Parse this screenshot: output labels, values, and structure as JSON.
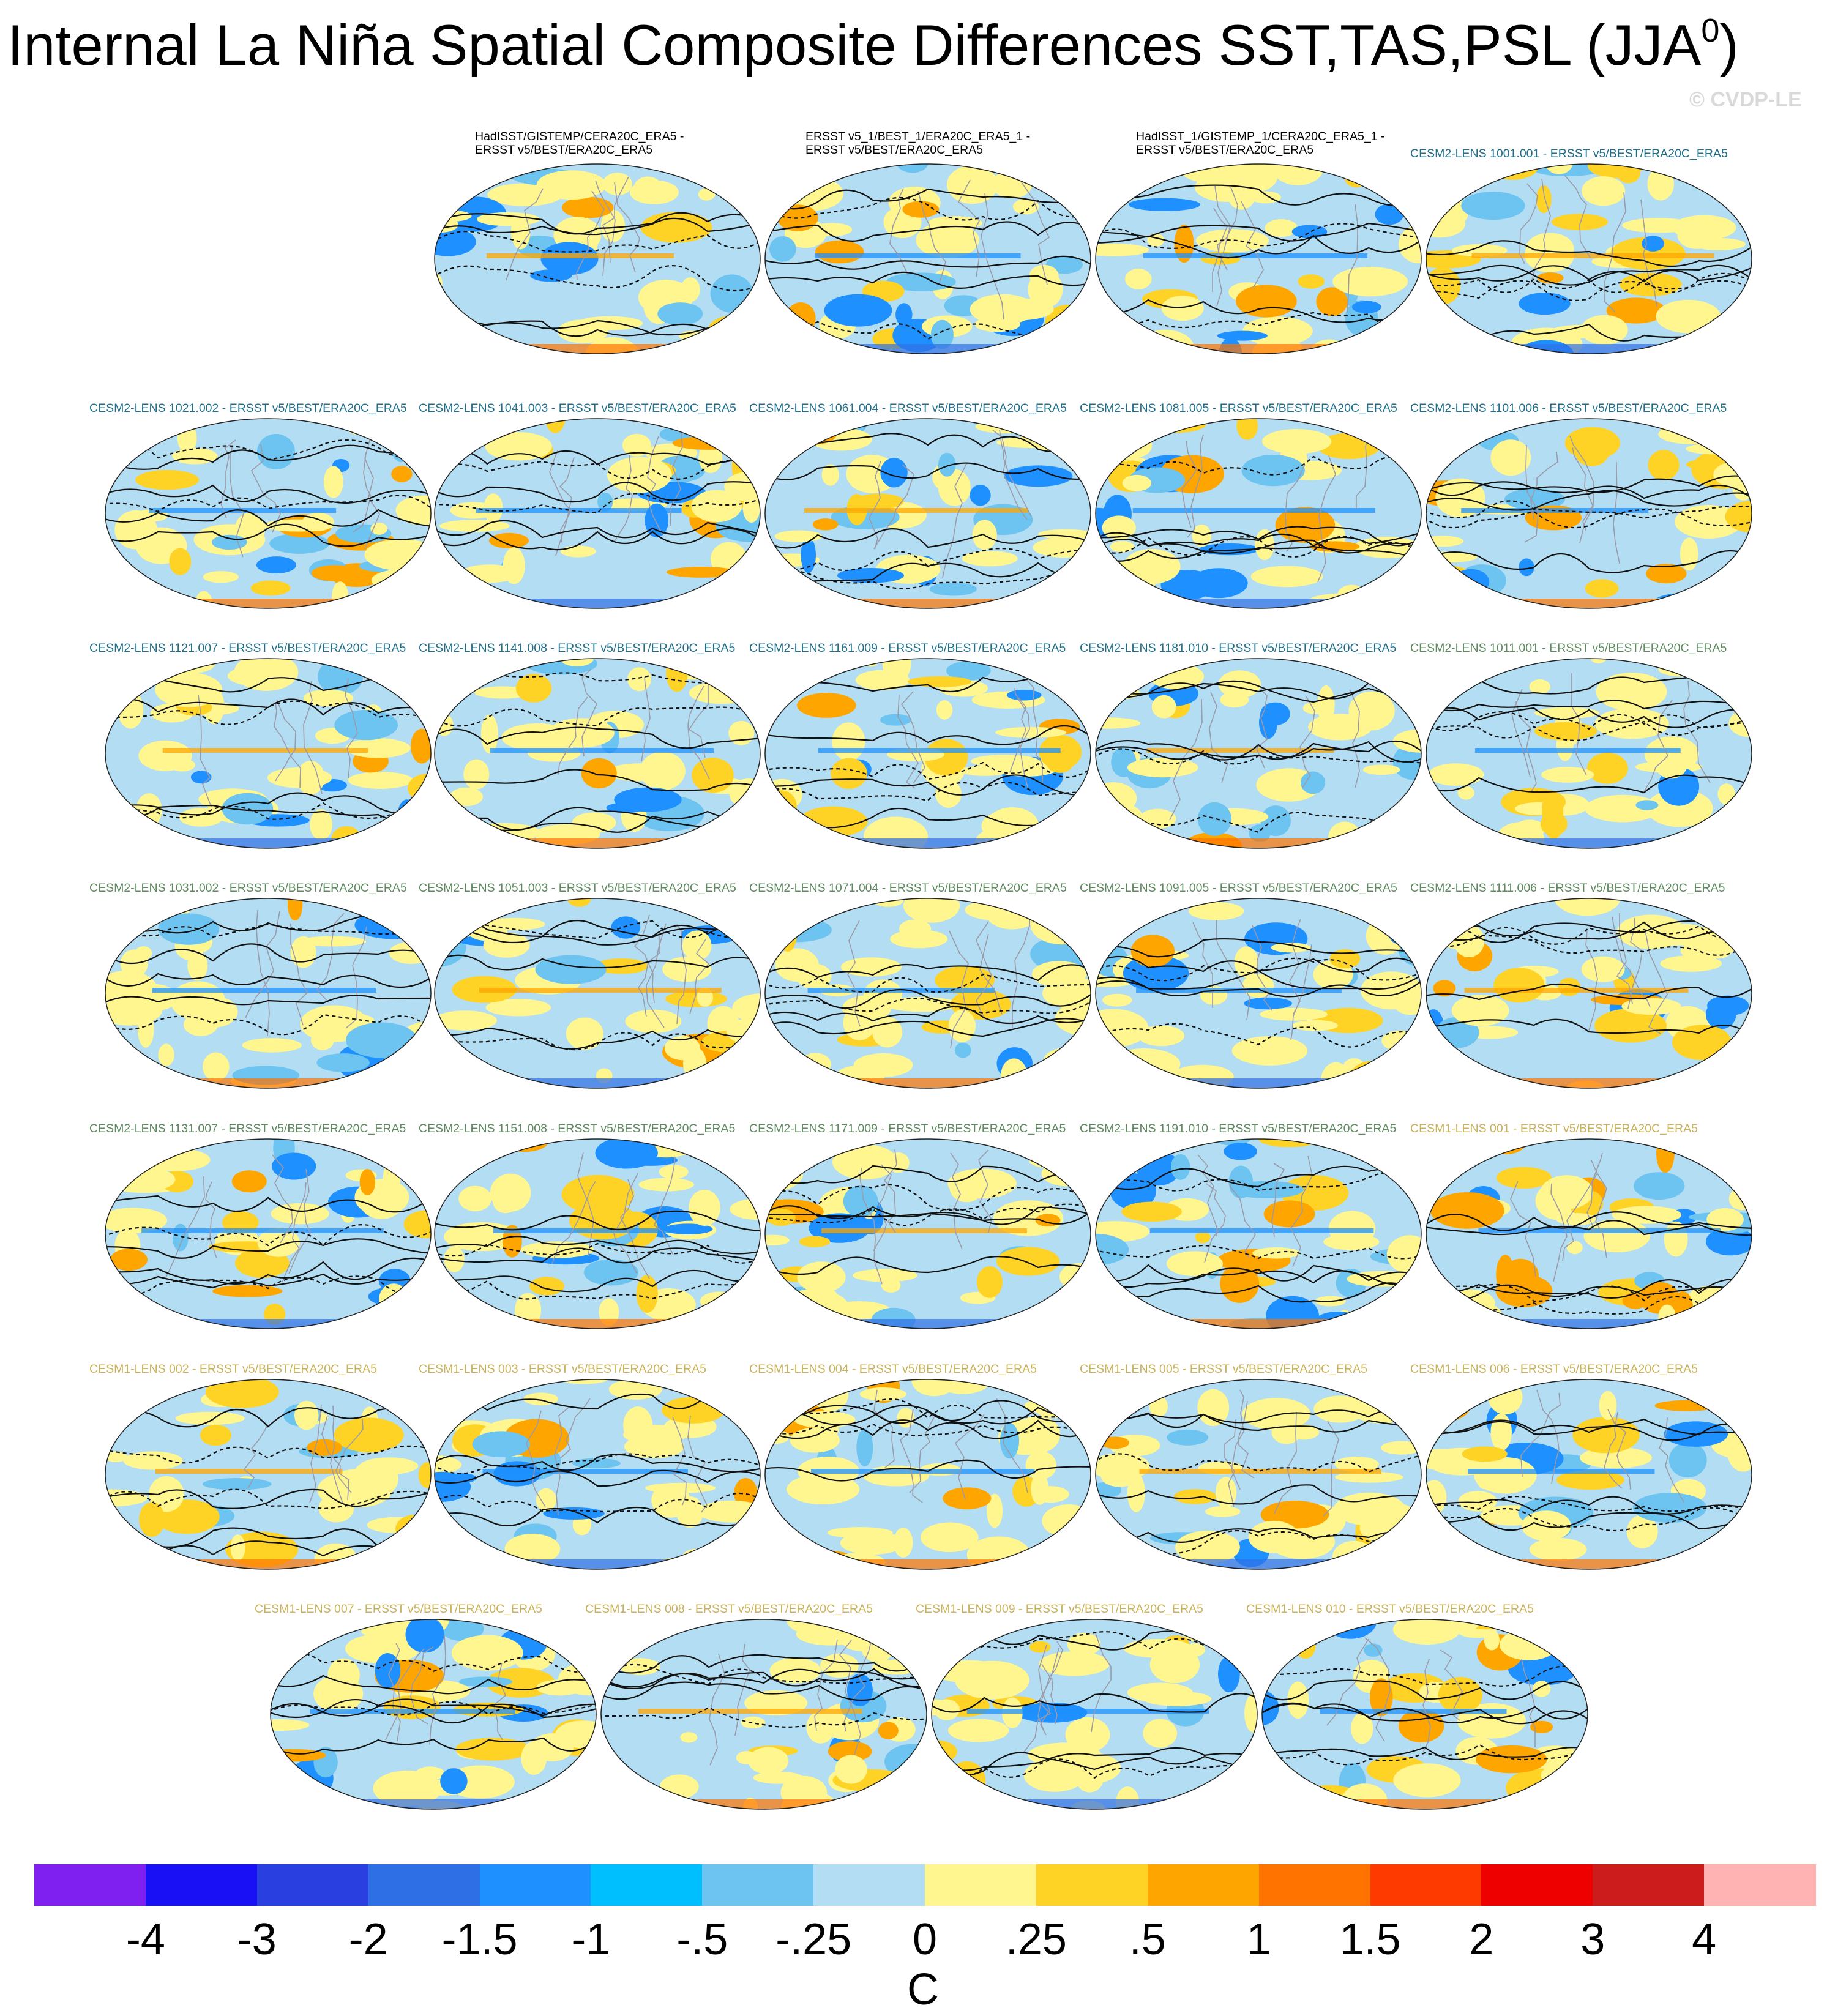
{
  "title": "Internal La Niña Spatial Composite Differences SST,TAS,PSL (JJA",
  "title_sup": "0",
  "title_close": ")",
  "copyright": "© CVDP-LE",
  "colors": {
    "obs_label": "#000000",
    "cesm2_blue_label": "#1f6f8b",
    "cesm2_green_label": "#5e8a60",
    "cesm1_label": "#c9b25a"
  },
  "panels": [
    {
      "label": "HadISST/GISTEMP/CERA20C_ERA5 -\nERSST v5/BEST/ERA20C_ERA5",
      "group": "obs"
    },
    {
      "label": "ERSST v5_1/BEST_1/ERA20C_ERA5_1 -\nERSST v5/BEST/ERA20C_ERA5",
      "group": "obs"
    },
    {
      "label": "HadISST_1/GISTEMP_1/CERA20C_ERA5_1 -\nERSST v5/BEST/ERA20C_ERA5",
      "group": "obs"
    },
    {
      "label": "CESM2-LENS 1001.001 - ERSST v5/BEST/ERA20C_ERA5",
      "group": "cesm2b"
    },
    {
      "label": "CESM2-LENS 1021.002 - ERSST v5/BEST/ERA20C_ERA5",
      "group": "cesm2b"
    },
    {
      "label": "CESM2-LENS 1041.003 - ERSST v5/BEST/ERA20C_ERA5",
      "group": "cesm2b"
    },
    {
      "label": "CESM2-LENS 1061.004 - ERSST v5/BEST/ERA20C_ERA5",
      "group": "cesm2b"
    },
    {
      "label": "CESM2-LENS 1081.005 - ERSST v5/BEST/ERA20C_ERA5",
      "group": "cesm2b"
    },
    {
      "label": "CESM2-LENS 1101.006 - ERSST v5/BEST/ERA20C_ERA5",
      "group": "cesm2b"
    },
    {
      "label": "CESM2-LENS 1121.007 - ERSST v5/BEST/ERA20C_ERA5",
      "group": "cesm2b"
    },
    {
      "label": "CESM2-LENS 1141.008 - ERSST v5/BEST/ERA20C_ERA5",
      "group": "cesm2b"
    },
    {
      "label": "CESM2-LENS 1161.009 - ERSST v5/BEST/ERA20C_ERA5",
      "group": "cesm2b"
    },
    {
      "label": "CESM2-LENS 1181.010 - ERSST v5/BEST/ERA20C_ERA5",
      "group": "cesm2b"
    },
    {
      "label": "CESM2-LENS 1011.001 - ERSST v5/BEST/ERA20C_ERA5",
      "group": "cesm2g"
    },
    {
      "label": "CESM2-LENS 1031.002 - ERSST v5/BEST/ERA20C_ERA5",
      "group": "cesm2g"
    },
    {
      "label": "CESM2-LENS 1051.003 - ERSST v5/BEST/ERA20C_ERA5",
      "group": "cesm2g"
    },
    {
      "label": "CESM2-LENS 1071.004 - ERSST v5/BEST/ERA20C_ERA5",
      "group": "cesm2g"
    },
    {
      "label": "CESM2-LENS 1091.005 - ERSST v5/BEST/ERA20C_ERA5",
      "group": "cesm2g"
    },
    {
      "label": "CESM2-LENS 1111.006 - ERSST v5/BEST/ERA20C_ERA5",
      "group": "cesm2g"
    },
    {
      "label": "CESM2-LENS 1131.007 - ERSST v5/BEST/ERA20C_ERA5",
      "group": "cesm2g"
    },
    {
      "label": "CESM2-LENS 1151.008 - ERSST v5/BEST/ERA20C_ERA5",
      "group": "cesm2g"
    },
    {
      "label": "CESM2-LENS 1171.009 - ERSST v5/BEST/ERA20C_ERA5",
      "group": "cesm2g"
    },
    {
      "label": "CESM2-LENS 1191.010 - ERSST v5/BEST/ERA20C_ERA5",
      "group": "cesm2g"
    },
    {
      "label": "CESM1-LENS 001 - ERSST v5/BEST/ERA20C_ERA5",
      "group": "cesm1"
    },
    {
      "label": "CESM1-LENS 002 - ERSST v5/BEST/ERA20C_ERA5",
      "group": "cesm1"
    },
    {
      "label": "CESM1-LENS 003 - ERSST v5/BEST/ERA20C_ERA5",
      "group": "cesm1"
    },
    {
      "label": "CESM1-LENS 004 - ERSST v5/BEST/ERA20C_ERA5",
      "group": "cesm1"
    },
    {
      "label": "CESM1-LENS 005 - ERSST v5/BEST/ERA20C_ERA5",
      "group": "cesm1"
    },
    {
      "label": "CESM1-LENS 006 - ERSST v5/BEST/ERA20C_ERA5",
      "group": "cesm1"
    },
    {
      "label": "CESM1-LENS 007 - ERSST v5/BEST/ERA20C_ERA5",
      "group": "cesm1"
    },
    {
      "label": "CESM1-LENS 008 - ERSST v5/BEST/ERA20C_ERA5",
      "group": "cesm1"
    },
    {
      "label": "CESM1-LENS 009 - ERSST v5/BEST/ERA20C_ERA5",
      "group": "cesm1"
    },
    {
      "label": "CESM1-LENS 010 - ERSST v5/BEST/ERA20C_ERA5",
      "group": "cesm1"
    }
  ],
  "colorbar": {
    "colors": [
      "#7f1ff0",
      "#1a10f5",
      "#2a3fe0",
      "#2f6fe6",
      "#1e90ff",
      "#00bfff",
      "#6ec4f0",
      "#b3ddf2",
      "#fff68f",
      "#ffd226",
      "#ffa500",
      "#ff7300",
      "#ff3a00",
      "#ef0000",
      "#cd1c1c",
      "#ffb3b3"
    ],
    "tick_labels": [
      "-4",
      "-3",
      "-2",
      "-1.5",
      "-1",
      "-.5",
      "-.25",
      "0",
      ".25",
      ".5",
      "1",
      "1.5",
      "2",
      "3",
      "4"
    ],
    "unit": "C"
  }
}
